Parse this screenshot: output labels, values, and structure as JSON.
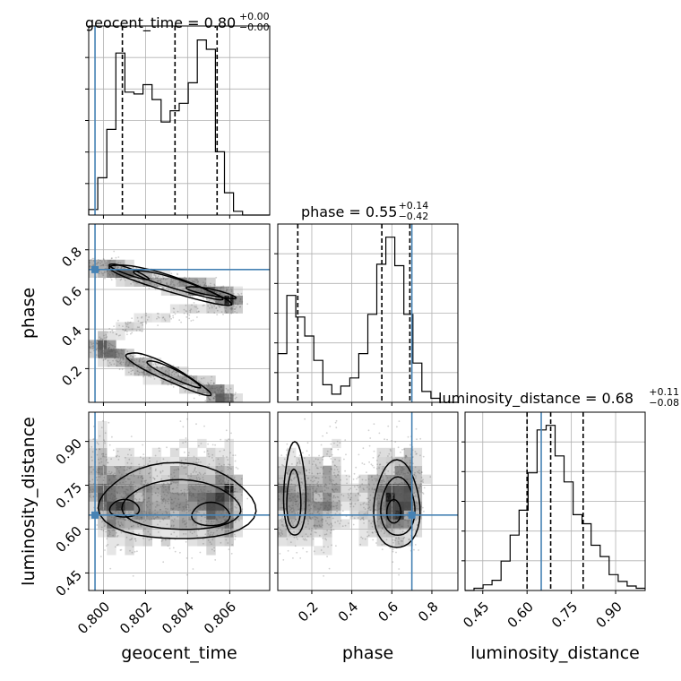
{
  "chart_data": {
    "type": "corner",
    "parameters": [
      "geocent_time",
      "phase",
      "luminosity_distance"
    ],
    "truths": {
      "geocent_time": 0.7996,
      "phase": 0.7,
      "luminosity_distance": 0.648
    },
    "colors": {
      "truth": "#4682b4",
      "hist": "#000000",
      "grid": "#b0b0b0",
      "scatter": "#555555"
    },
    "titles": [
      {
        "param": "geocent_time",
        "prefix": "geocent_time = ",
        "value": "0.80",
        "plus": "+0.00",
        "minus": "−0.00"
      },
      {
        "param": "phase",
        "prefix": "phase = ",
        "value": "0.55",
        "plus": "+0.14",
        "minus": "−0.42"
      },
      {
        "param": "luminosity_distance",
        "prefix": "luminosity_distance = ",
        "value": "0.68",
        "plus": "+0.11",
        "minus": "−0.08"
      }
    ],
    "axes": {
      "geocent_time": {
        "label": "geocent_time",
        "range": [
          0.7993,
          0.8079
        ],
        "ticks": [
          0.8,
          0.802,
          0.804,
          0.806
        ],
        "tick_labels": [
          "0.800",
          "0.802",
          "0.804",
          "0.806"
        ]
      },
      "phase": {
        "label": "phase",
        "range": [
          0.03,
          0.93
        ],
        "ticks": [
          0.2,
          0.4,
          0.6,
          0.8
        ],
        "tick_labels": [
          "0.2",
          "0.4",
          "0.6",
          "0.8"
        ]
      },
      "luminosity_distance": {
        "label": "luminosity_distance",
        "range": [
          0.39,
          1.0
        ],
        "ticks": [
          0.45,
          0.6,
          0.75,
          0.9
        ],
        "tick_labels": [
          "0.45",
          "0.60",
          "0.75",
          "0.90"
        ]
      }
    },
    "histograms": {
      "geocent_time": {
        "edges": [
          0.7993,
          0.79973,
          0.80016,
          0.80059,
          0.80102,
          0.80145,
          0.80188,
          0.80231,
          0.80274,
          0.80317,
          0.8036,
          0.80403,
          0.80446,
          0.80489,
          0.80532,
          0.80575,
          0.80618,
          0.80661,
          0.80704,
          0.80747,
          0.8079
        ],
        "counts": [
          3,
          20,
          46,
          87,
          66,
          65,
          70,
          62,
          50,
          56,
          60,
          71,
          94,
          89,
          34,
          12,
          2,
          0,
          0,
          0
        ],
        "quantiles": [
          0.8009,
          0.8034,
          0.8054
        ]
      },
      "phase": {
        "edges": [
          0.03,
          0.075,
          0.12,
          0.165,
          0.21,
          0.255,
          0.3,
          0.345,
          0.39,
          0.435,
          0.48,
          0.525,
          0.57,
          0.615,
          0.66,
          0.705,
          0.75,
          0.795,
          0.84,
          0.885,
          0.93
        ],
        "counts": [
          36,
          79,
          63,
          49,
          31,
          13,
          6,
          12,
          18,
          36,
          65,
          102,
          122,
          101,
          65,
          29,
          8,
          3,
          0,
          0
        ],
        "quantiles": [
          0.13,
          0.55,
          0.69
        ]
      },
      "luminosity_distance": {
        "edges": [
          0.39,
          0.4205,
          0.451,
          0.4815,
          0.512,
          0.5425,
          0.573,
          0.6035,
          0.634,
          0.6645,
          0.695,
          0.7255,
          0.756,
          0.7865,
          0.817,
          0.8475,
          0.878,
          0.9085,
          0.939,
          0.9695,
          1.0
        ],
        "counts": [
          0,
          2,
          5,
          9,
          26,
          49,
          71,
          104,
          142,
          146,
          119,
          96,
          67,
          59,
          40,
          30,
          14,
          8,
          4,
          2
        ],
        "quantiles": [
          0.6,
          0.68,
          0.79
        ]
      }
    }
  }
}
